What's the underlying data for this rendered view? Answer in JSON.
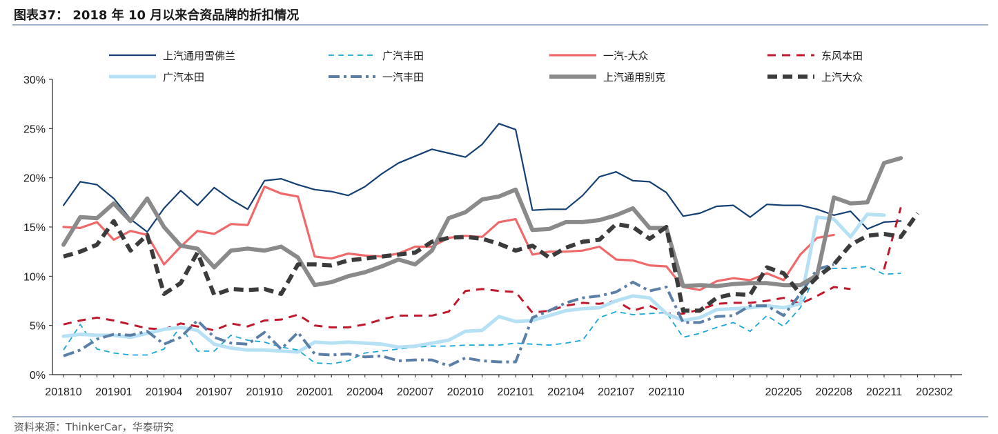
{
  "title": "图表37： 2018 年 10 月以来合资品牌的折扣情况",
  "source": "资料来源：ThinkerCar，华泰研究",
  "chart_data": {
    "type": "line",
    "xlabel": "",
    "ylabel": "",
    "ylim": [
      0,
      30
    ],
    "yticks": [
      "0%",
      "5%",
      "10%",
      "15%",
      "20%",
      "25%",
      "30%"
    ],
    "xtick_labels": [
      "201810",
      "201901",
      "201904",
      "201907",
      "201910",
      "202001",
      "202004",
      "202007",
      "202010",
      "202101",
      "202104",
      "202107",
      "202110",
      "202205",
      "202208",
      "202211",
      "202302"
    ],
    "legend_position": "top",
    "x": [
      "201810",
      "201811",
      "201812",
      "201901",
      "201902",
      "201903",
      "201904",
      "201905",
      "201906",
      "201907",
      "201908",
      "201909",
      "201910",
      "201911",
      "201912",
      "202001",
      "202002",
      "202003",
      "202004",
      "202005",
      "202006",
      "202007",
      "202008",
      "202009",
      "202010",
      "202011",
      "202012",
      "202101",
      "202102",
      "202103",
      "202104",
      "202105",
      "202106",
      "202107",
      "202108",
      "202109",
      "202110",
      "202111",
      "202112",
      "202201",
      "202202",
      "202203",
      "202204",
      "202205",
      "202206",
      "202207",
      "202208",
      "202209",
      "202210",
      "202211",
      "202212",
      "202301",
      "202302",
      "202303"
    ],
    "series": [
      {
        "name": "上汽通用雪佛兰",
        "color": "#143f73",
        "width": 2.2,
        "dash": "",
        "values": [
          17.2,
          19.6,
          19.3,
          17.9,
          15.8,
          14.5,
          16.9,
          18.7,
          17.2,
          19.0,
          17.8,
          16.8,
          19.7,
          19.9,
          19.3,
          18.8,
          18.6,
          18.2,
          19.1,
          20.4,
          21.5,
          22.2,
          22.9,
          22.5,
          22.1,
          23.4,
          25.5,
          24.9,
          16.7,
          16.8,
          16.8,
          18.2,
          20.1,
          20.6,
          19.7,
          19.6,
          18.5,
          16.1,
          16.4,
          17.1,
          17.2,
          16.0,
          17.3,
          17.2,
          17.2,
          16.8,
          16.2,
          16.6,
          14.8,
          15.5,
          15.6,
          null,
          null,
          null
        ]
      },
      {
        "name": "广汽丰田",
        "color": "#1aa6d9",
        "width": 1.8,
        "dash": "8,6",
        "values": [
          2.5,
          5.1,
          2.6,
          2.2,
          2.0,
          2.0,
          2.6,
          4.9,
          2.4,
          2.4,
          4.0,
          3.5,
          3.3,
          2.8,
          2.5,
          1.2,
          1.1,
          1.4,
          2.2,
          2.4,
          2.6,
          2.8,
          2.9,
          2.9,
          3.0,
          3.0,
          3.0,
          3.2,
          3.1,
          3.0,
          3.2,
          3.5,
          5.8,
          6.4,
          6.1,
          6.2,
          6.3,
          3.8,
          4.2,
          4.8,
          5.3,
          4.4,
          6.0,
          4.9,
          6.8,
          10.5,
          10.8,
          10.8,
          11.0,
          10.2,
          10.3,
          null,
          null,
          null
        ]
      },
      {
        "name": "一汽-大众",
        "color": "#f0696a",
        "width": 3.2,
        "dash": "",
        "values": [
          15.0,
          14.9,
          15.5,
          13.7,
          14.6,
          14.2,
          11.2,
          13.0,
          14.6,
          14.3,
          15.3,
          15.2,
          19.1,
          18.4,
          18.1,
          12.0,
          11.8,
          12.3,
          12.1,
          12.0,
          12.3,
          13.0,
          13.0,
          13.9,
          14.1,
          14.0,
          15.5,
          15.8,
          12.2,
          12.5,
          12.5,
          12.6,
          13.0,
          11.7,
          11.6,
          11.1,
          11.0,
          8.9,
          8.6,
          9.5,
          9.8,
          9.6,
          10.3,
          9.6,
          12.2,
          13.9,
          14.2,
          null,
          null,
          null,
          null,
          null,
          null,
          null
        ]
      },
      {
        "name": "东风本田",
        "color": "#c0182c",
        "width": 3.0,
        "dash": "12,9",
        "values": [
          5.1,
          5.5,
          5.8,
          5.5,
          5.1,
          4.7,
          4.6,
          5.2,
          4.9,
          4.5,
          5.2,
          4.9,
          5.5,
          5.6,
          6.1,
          5.0,
          4.8,
          4.8,
          5.1,
          5.6,
          6.0,
          6.0,
          6.0,
          6.4,
          8.5,
          8.7,
          8.5,
          8.4,
          6.3,
          6.5,
          7.0,
          7.3,
          7.2,
          7.5,
          6.5,
          7.0,
          6.2,
          6.2,
          6.6,
          7.2,
          7.3,
          7.3,
          7.5,
          7.8,
          7.2,
          8.0,
          8.9,
          8.7,
          null,
          10.7,
          17.0,
          null,
          null,
          null
        ]
      },
      {
        "name": "广汽本田",
        "color": "#b6e0f3",
        "width": 5.0,
        "dash": "",
        "values": [
          3.9,
          4.1,
          4.0,
          4.0,
          3.8,
          4.2,
          4.6,
          4.8,
          4.5,
          3.1,
          2.7,
          2.5,
          2.5,
          2.4,
          2.3,
          3.3,
          3.2,
          3.3,
          3.2,
          3.1,
          2.8,
          2.9,
          3.2,
          3.5,
          4.4,
          4.5,
          5.9,
          5.4,
          5.5,
          6.0,
          6.5,
          6.7,
          6.8,
          7.5,
          8.0,
          7.8,
          6.2,
          5.5,
          5.8,
          6.6,
          6.7,
          6.8,
          7.0,
          6.8,
          7.2,
          16.0,
          15.8,
          14.0,
          16.3,
          16.2,
          null,
          null,
          null,
          null
        ]
      },
      {
        "name": "一汽丰田",
        "color": "#5b7fa6",
        "width": 4.0,
        "dash": "16,6,4,6",
        "values": [
          1.9,
          2.5,
          3.6,
          4.1,
          4.0,
          4.4,
          3.1,
          3.8,
          5.5,
          3.8,
          3.2,
          3.1,
          4.3,
          2.6,
          4.3,
          2.1,
          2.0,
          2.1,
          1.8,
          1.9,
          1.4,
          1.5,
          1.5,
          0.9,
          1.7,
          1.4,
          1.3,
          1.3,
          5.8,
          6.5,
          7.3,
          7.8,
          8.0,
          8.4,
          9.4,
          8.5,
          8.9,
          5.3,
          5.3,
          5.9,
          6.0,
          7.0,
          7.0,
          6.0,
          8.2,
          10.7,
          11.2,
          null,
          null,
          null,
          null,
          null,
          null,
          null
        ]
      },
      {
        "name": "上汽通用别克",
        "color": "#8a8a8a",
        "width": 6.0,
        "dash": "",
        "values": [
          13.2,
          16.0,
          15.9,
          17.4,
          15.6,
          17.9,
          15.0,
          13.1,
          12.8,
          10.9,
          12.6,
          12.8,
          12.6,
          13.0,
          11.9,
          9.1,
          9.4,
          10.0,
          10.4,
          11.0,
          11.7,
          11.2,
          12.6,
          15.9,
          16.5,
          17.8,
          18.1,
          18.8,
          14.7,
          14.8,
          15.5,
          15.5,
          15.7,
          16.2,
          16.9,
          14.9,
          14.9,
          9.0,
          9.1,
          9.0,
          9.2,
          9.3,
          9.3,
          9.1,
          9.1,
          10.1,
          18.0,
          17.4,
          17.5,
          21.5,
          22.0,
          null,
          null,
          null
        ]
      },
      {
        "name": "上汽大众",
        "color": "#3b3b3b",
        "width": 6.0,
        "dash": "14,8",
        "values": [
          12.0,
          12.5,
          13.2,
          15.6,
          12.6,
          14.2,
          8.2,
          9.3,
          12.4,
          8.1,
          8.7,
          8.6,
          8.7,
          8.2,
          11.2,
          11.2,
          11.1,
          11.6,
          11.8,
          12.0,
          12.2,
          12.4,
          13.5,
          13.9,
          14.0,
          13.8,
          13.3,
          12.6,
          13.1,
          11.9,
          12.9,
          13.5,
          13.7,
          15.3,
          15.0,
          13.8,
          15.0,
          6.5,
          6.5,
          7.8,
          8.2,
          8.1,
          10.9,
          10.3,
          8.2,
          9.9,
          11.2,
          13.2,
          14.1,
          14.3,
          14.0,
          16.4,
          null,
          null
        ]
      }
    ]
  }
}
